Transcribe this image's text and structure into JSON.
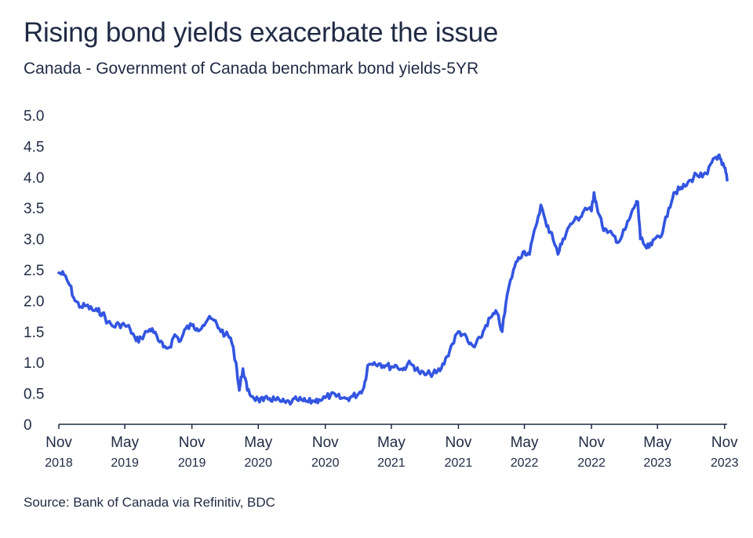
{
  "title": "Rising bond yields exacerbate the issue",
  "subtitle": "Canada - Government of Canada benchmark bond yields-5YR",
  "source": "Source: Bank of Canada via Refinitiv, BDC",
  "colors": {
    "line": "#3355e0",
    "text": "#1f2a44",
    "axis": "#1f2a44"
  },
  "chart_data": {
    "type": "line",
    "title": "Rising bond yields exacerbate the issue",
    "subtitle": "Canada - Government of Canada benchmark bond yields-5YR",
    "xlabel": "",
    "ylabel": "",
    "ylim": [
      0,
      5
    ],
    "y_ticks": [
      "0",
      "0.5",
      "1.0",
      "1.5",
      "2.0",
      "2.5",
      "3.0",
      "3.5",
      "4.0",
      "4.5",
      "5.0"
    ],
    "x_ticks": [
      {
        "month": "Nov",
        "year": "2018",
        "date": "2018-11"
      },
      {
        "month": "May",
        "year": "2019",
        "date": "2019-05"
      },
      {
        "month": "Nov",
        "year": "2019",
        "date": "2019-11"
      },
      {
        "month": "May",
        "year": "2020",
        "date": "2020-05"
      },
      {
        "month": "Nov",
        "year": "2020",
        "date": "2020-11"
      },
      {
        "month": "May",
        "year": "2021",
        "date": "2021-05"
      },
      {
        "month": "Nov",
        "year": "2021",
        "date": "2021-11"
      },
      {
        "month": "May",
        "year": "2022",
        "date": "2022-05"
      },
      {
        "month": "Nov",
        "year": "2022",
        "date": "2022-11"
      },
      {
        "month": "May",
        "year": "2023",
        "date": "2023-05"
      },
      {
        "month": "Nov",
        "year": "2023",
        "date": "2023-11"
      }
    ],
    "grid": false,
    "legend": "none",
    "series": [
      {
        "points": [
          [
            "2018-11-01",
            2.45
          ],
          [
            "2018-11-15",
            2.42
          ],
          [
            "2018-12-01",
            2.25
          ],
          [
            "2018-12-15",
            2.0
          ],
          [
            "2019-01-01",
            1.9
          ],
          [
            "2019-01-15",
            1.92
          ],
          [
            "2019-02-01",
            1.85
          ],
          [
            "2019-02-15",
            1.83
          ],
          [
            "2019-03-01",
            1.8
          ],
          [
            "2019-03-15",
            1.65
          ],
          [
            "2019-04-01",
            1.58
          ],
          [
            "2019-04-15",
            1.62
          ],
          [
            "2019-05-01",
            1.6
          ],
          [
            "2019-05-15",
            1.55
          ],
          [
            "2019-06-01",
            1.35
          ],
          [
            "2019-06-15",
            1.4
          ],
          [
            "2019-07-01",
            1.5
          ],
          [
            "2019-07-15",
            1.55
          ],
          [
            "2019-08-01",
            1.35
          ],
          [
            "2019-08-15",
            1.25
          ],
          [
            "2019-09-01",
            1.25
          ],
          [
            "2019-09-15",
            1.45
          ],
          [
            "2019-10-01",
            1.35
          ],
          [
            "2019-10-15",
            1.55
          ],
          [
            "2019-11-01",
            1.6
          ],
          [
            "2019-11-15",
            1.55
          ],
          [
            "2019-12-01",
            1.6
          ],
          [
            "2019-12-15",
            1.7
          ],
          [
            "2020-01-01",
            1.68
          ],
          [
            "2020-01-15",
            1.55
          ],
          [
            "2020-02-01",
            1.45
          ],
          [
            "2020-02-15",
            1.4
          ],
          [
            "2020-03-01",
            1.0
          ],
          [
            "2020-03-10",
            0.55
          ],
          [
            "2020-03-20",
            0.9
          ],
          [
            "2020-04-01",
            0.55
          ],
          [
            "2020-04-15",
            0.45
          ],
          [
            "2020-05-01",
            0.4
          ],
          [
            "2020-05-15",
            0.38
          ],
          [
            "2020-06-01",
            0.42
          ],
          [
            "2020-06-15",
            0.4
          ],
          [
            "2020-07-01",
            0.37
          ],
          [
            "2020-07-15",
            0.35
          ],
          [
            "2020-08-01",
            0.36
          ],
          [
            "2020-08-15",
            0.4
          ],
          [
            "2020-09-01",
            0.38
          ],
          [
            "2020-09-15",
            0.36
          ],
          [
            "2020-10-01",
            0.38
          ],
          [
            "2020-10-15",
            0.4
          ],
          [
            "2020-11-01",
            0.43
          ],
          [
            "2020-11-15",
            0.47
          ],
          [
            "2020-12-01",
            0.45
          ],
          [
            "2020-12-15",
            0.42
          ],
          [
            "2021-01-01",
            0.42
          ],
          [
            "2021-01-15",
            0.45
          ],
          [
            "2021-02-01",
            0.5
          ],
          [
            "2021-02-15",
            0.6
          ],
          [
            "2021-02-25",
            0.95
          ],
          [
            "2021-03-15",
            1.0
          ],
          [
            "2021-04-01",
            0.98
          ],
          [
            "2021-04-15",
            0.95
          ],
          [
            "2021-05-01",
            0.93
          ],
          [
            "2021-05-15",
            0.95
          ],
          [
            "2021-06-01",
            0.88
          ],
          [
            "2021-06-15",
            0.98
          ],
          [
            "2021-07-01",
            0.95
          ],
          [
            "2021-07-15",
            0.85
          ],
          [
            "2021-08-01",
            0.8
          ],
          [
            "2021-08-15",
            0.82
          ],
          [
            "2021-09-01",
            0.83
          ],
          [
            "2021-09-15",
            0.9
          ],
          [
            "2021-10-01",
            1.1
          ],
          [
            "2021-10-15",
            1.3
          ],
          [
            "2021-11-01",
            1.5
          ],
          [
            "2021-11-15",
            1.45
          ],
          [
            "2021-12-01",
            1.3
          ],
          [
            "2021-12-15",
            1.25
          ],
          [
            "2022-01-01",
            1.4
          ],
          [
            "2022-01-15",
            1.6
          ],
          [
            "2022-02-01",
            1.75
          ],
          [
            "2022-02-15",
            1.8
          ],
          [
            "2022-03-01",
            1.5
          ],
          [
            "2022-03-15",
            2.1
          ],
          [
            "2022-04-01",
            2.5
          ],
          [
            "2022-04-15",
            2.7
          ],
          [
            "2022-05-01",
            2.8
          ],
          [
            "2022-05-15",
            2.75
          ],
          [
            "2022-06-01",
            3.2
          ],
          [
            "2022-06-15",
            3.55
          ],
          [
            "2022-07-01",
            3.2
          ],
          [
            "2022-07-15",
            3.1
          ],
          [
            "2022-08-01",
            2.75
          ],
          [
            "2022-08-15",
            3.0
          ],
          [
            "2022-09-01",
            3.2
          ],
          [
            "2022-09-15",
            3.3
          ],
          [
            "2022-10-01",
            3.35
          ],
          [
            "2022-10-15",
            3.5
          ],
          [
            "2022-11-01",
            3.45
          ],
          [
            "2022-11-08",
            3.75
          ],
          [
            "2022-11-15",
            3.55
          ],
          [
            "2022-12-01",
            3.2
          ],
          [
            "2022-12-15",
            3.1
          ],
          [
            "2023-01-01",
            3.05
          ],
          [
            "2023-01-15",
            2.95
          ],
          [
            "2023-02-01",
            3.15
          ],
          [
            "2023-02-15",
            3.35
          ],
          [
            "2023-03-01",
            3.55
          ],
          [
            "2023-03-08",
            3.6
          ],
          [
            "2023-03-15",
            3.0
          ],
          [
            "2023-04-01",
            2.85
          ],
          [
            "2023-04-15",
            2.9
          ],
          [
            "2023-05-01",
            3.05
          ],
          [
            "2023-05-15",
            3.1
          ],
          [
            "2023-06-01",
            3.5
          ],
          [
            "2023-06-15",
            3.75
          ],
          [
            "2023-07-01",
            3.8
          ],
          [
            "2023-07-15",
            3.85
          ],
          [
            "2023-08-01",
            3.95
          ],
          [
            "2023-08-15",
            4.05
          ],
          [
            "2023-09-01",
            4.0
          ],
          [
            "2023-09-15",
            4.05
          ],
          [
            "2023-10-01",
            4.3
          ],
          [
            "2023-10-15",
            4.35
          ],
          [
            "2023-10-25",
            4.2
          ],
          [
            "2023-11-01",
            4.15
          ],
          [
            "2023-11-08",
            3.95
          ]
        ]
      }
    ]
  }
}
